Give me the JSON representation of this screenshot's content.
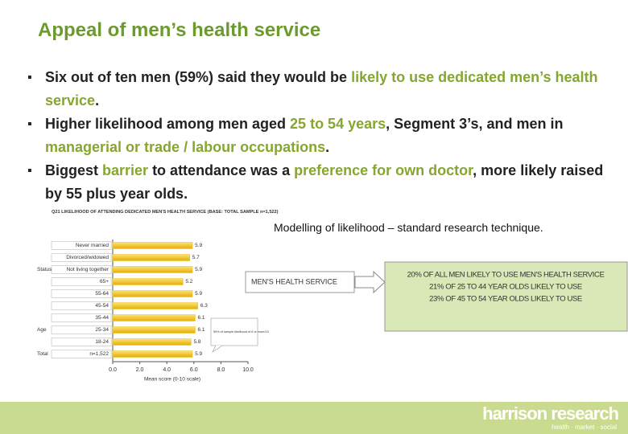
{
  "title": "Appeal of men’s health service",
  "bullets": [
    {
      "segments": [
        {
          "text": "Six out of ten men (59%) said they would be ",
          "highlight": false
        },
        {
          "text": "likely to use dedicated men’s health service",
          "highlight": true
        },
        {
          "text": ".",
          "highlight": false
        }
      ]
    },
    {
      "segments": [
        {
          "text": "Higher likelihood among men aged ",
          "highlight": false
        },
        {
          "text": "25 to 54 years",
          "highlight": true
        },
        {
          "text": ", Segment 3’s, and men in ",
          "highlight": false
        },
        {
          "text": "managerial or trade / labour occupations",
          "highlight": true
        },
        {
          "text": ".",
          "highlight": false
        }
      ]
    },
    {
      "segments": [
        {
          "text": "Biggest ",
          "highlight": false
        },
        {
          "text": "barrier",
          "highlight": true
        },
        {
          "text": " to attendance was a ",
          "highlight": false
        },
        {
          "text": "preference for own doctor",
          "highlight": true
        },
        {
          "text": ", more likely raised by 55 plus year olds.",
          "highlight": false
        }
      ]
    }
  ],
  "chart_data": {
    "type": "bar",
    "orientation": "horizontal",
    "title": "Q21 LIKELIHOOD OF ATTENDING DEDICATED MEN'S HEALTH SERVICE (BASE: TOTAL SAMPLE n=1,522)",
    "categories": [
      "Never married",
      "Divorced/widowed",
      "Not living together",
      "65+",
      "55-64",
      "45-54",
      "35-44",
      "25-34",
      "18-24",
      "n=1,522"
    ],
    "category_groups": [
      null,
      null,
      "Status",
      null,
      null,
      null,
      null,
      "Age",
      null,
      "Total"
    ],
    "values": [
      5.9,
      5.7,
      5.9,
      5.2,
      5.9,
      6.3,
      6.1,
      6.1,
      5.8,
      5.9
    ],
    "color": "#f2c21b",
    "xlim": [
      0,
      10
    ],
    "xticks": [
      {
        "value": 0,
        "label": "0.0"
      },
      {
        "value": 2,
        "label": "2.0"
      },
      {
        "value": 4,
        "label": "4.0"
      },
      {
        "value": 6,
        "label": "6.0"
      },
      {
        "value": 8,
        "label": "8.0"
      },
      {
        "value": 10,
        "label": "10.0"
      }
    ],
    "xlabel": "Mean score (0-10 scale)",
    "annotation": "59% of sample likelihood of 6 or more/10"
  },
  "diagram": {
    "caption": "Modelling of likelihood – standard research technique.",
    "source": "MEN'S HEALTH SERVICE",
    "results": [
      "20% OF ALL MEN LIKELY TO USE MEN'S HEALTH SERVICE",
      "21% OF 25 TO 44 YEAR OLDS LIKELY TO USE",
      "23% OF 45 TO 54 YEAR OLDS LIKELY TO USE"
    ]
  },
  "footer": {
    "logo": "harrison research",
    "tagline": "health · market · social"
  }
}
